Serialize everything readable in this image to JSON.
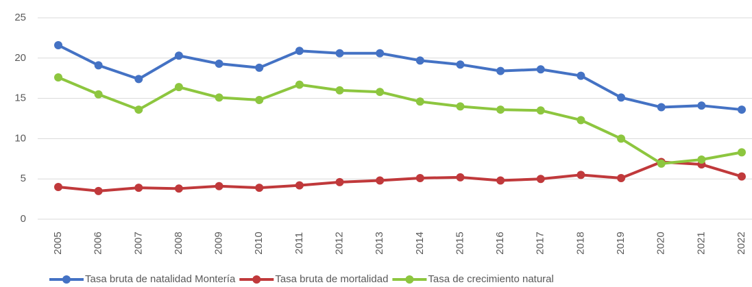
{
  "chart_data": {
    "type": "line",
    "categories": [
      "2005",
      "2006",
      "2007",
      "2008",
      "2009",
      "2010",
      "2011",
      "2012",
      "2013",
      "2014",
      "2015",
      "2016",
      "2017",
      "2018",
      "2019",
      "2020",
      "2021",
      "2022"
    ],
    "series": [
      {
        "name": "Tasa bruta de natalidad Montería",
        "color": "#4472c4",
        "values": [
          21.6,
          19.1,
          17.4,
          20.3,
          19.3,
          18.8,
          20.9,
          20.6,
          20.6,
          19.7,
          19.2,
          18.4,
          18.6,
          17.8,
          15.1,
          13.9,
          14.1,
          13.6
        ]
      },
      {
        "name": "Tasa bruta de mortalidad",
        "color": "#c0393b",
        "values": [
          4.0,
          3.5,
          3.9,
          3.8,
          4.1,
          3.9,
          4.2,
          4.6,
          4.8,
          5.1,
          5.2,
          4.8,
          5.0,
          5.5,
          5.1,
          7.1,
          6.8,
          5.3
        ]
      },
      {
        "name": "Tasa de crecimiento natural",
        "color": "#8dc63f",
        "values": [
          17.6,
          15.5,
          13.6,
          16.4,
          15.1,
          14.8,
          16.7,
          16.0,
          15.8,
          14.6,
          14.0,
          13.6,
          13.5,
          12.3,
          10.0,
          6.9,
          7.4,
          8.3
        ]
      }
    ],
    "ylim": [
      0,
      25
    ],
    "yticks": [
      0,
      5,
      10,
      15,
      20,
      25
    ],
    "grid": true,
    "legend": "bottom"
  }
}
